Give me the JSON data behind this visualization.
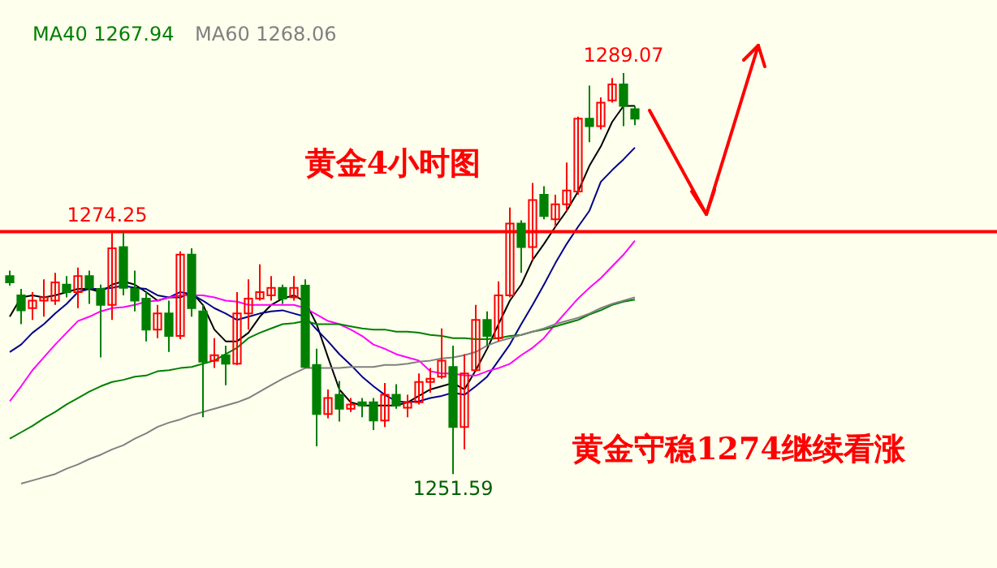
{
  "chart_data": {
    "type": "candlestick",
    "categories": [
      null,
      null,
      null,
      null,
      null,
      null,
      null,
      null,
      null,
      null,
      null,
      null,
      null,
      null,
      null,
      null,
      null,
      null,
      null,
      null,
      null,
      null,
      null,
      null,
      null,
      null,
      null,
      null,
      null,
      null,
      null,
      null,
      null,
      null,
      null,
      null,
      null,
      null,
      null,
      null,
      null,
      null,
      null,
      null,
      null,
      null,
      null,
      null,
      null,
      null,
      null,
      null,
      null,
      null,
      null,
      null
    ],
    "ohlc": [
      [
        1270.1,
        1270.6,
        1269.2,
        1269.5
      ],
      [
        1268.3,
        1268.9,
        1265.6,
        1266.9
      ],
      [
        1267.1,
        1268.6,
        1266.0,
        1267.8
      ],
      [
        1267.8,
        1269.8,
        1266.3,
        1268.1
      ],
      [
        1267.8,
        1270.4,
        1267.4,
        1269.5
      ],
      [
        1269.3,
        1270.1,
        1268.1,
        1268.6
      ],
      [
        1268.6,
        1270.9,
        1267.1,
        1270.1
      ],
      [
        1270.1,
        1270.6,
        1267.5,
        1269.0
      ],
      [
        1268.9,
        1269.3,
        1262.5,
        1267.4
      ],
      [
        1267.4,
        1274.25,
        1266.0,
        1272.7
      ],
      [
        1272.8,
        1274.2,
        1268.3,
        1269.0
      ],
      [
        1268.9,
        1270.6,
        1266.8,
        1267.8
      ],
      [
        1268.0,
        1268.6,
        1264.0,
        1265.1
      ],
      [
        1265.1,
        1267.4,
        1264.3,
        1266.6
      ],
      [
        1266.6,
        1267.8,
        1263.0,
        1264.5
      ],
      [
        1264.5,
        1272.4,
        1264.2,
        1272.1
      ],
      [
        1272.1,
        1272.7,
        1266.3,
        1267.1
      ],
      [
        1266.8,
        1267.4,
        1256.9,
        1262.1
      ],
      [
        1262.2,
        1264.3,
        1261.5,
        1262.7
      ],
      [
        1262.7,
        1263.6,
        1259.9,
        1261.9
      ],
      [
        1261.9,
        1268.6,
        1261.8,
        1266.6
      ],
      [
        1266.6,
        1269.8,
        1265.1,
        1268.0
      ],
      [
        1268.0,
        1271.2,
        1267.8,
        1268.6
      ],
      [
        1268.3,
        1270.1,
        1267.8,
        1269.0
      ],
      [
        1269.0,
        1269.3,
        1267.5,
        1268.0
      ],
      [
        1268.1,
        1270.1,
        1267.8,
        1269.0
      ],
      [
        1269.2,
        1269.8,
        1261.5,
        1261.6
      ],
      [
        1261.8,
        1263.3,
        1254.2,
        1257.2
      ],
      [
        1257.2,
        1259.5,
        1256.8,
        1258.7
      ],
      [
        1259.0,
        1260.3,
        1256.5,
        1257.7
      ],
      [
        1257.7,
        1258.7,
        1257.4,
        1258.1
      ],
      [
        1258.3,
        1258.7,
        1256.9,
        1258.0
      ],
      [
        1258.3,
        1258.7,
        1255.7,
        1256.6
      ],
      [
        1256.6,
        1260.1,
        1256.0,
        1259.0
      ],
      [
        1259.0,
        1260.0,
        1257.7,
        1258.0
      ],
      [
        1257.8,
        1259.0,
        1256.9,
        1258.3
      ],
      [
        1258.3,
        1261.0,
        1258.1,
        1260.2
      ],
      [
        1260.2,
        1261.5,
        1259.2,
        1260.5
      ],
      [
        1260.7,
        1265.2,
        1260.5,
        1262.2
      ],
      [
        1261.6,
        1263.6,
        1251.59,
        1256.0
      ],
      [
        1256.0,
        1262.8,
        1253.9,
        1261.0
      ],
      [
        1261.3,
        1267.4,
        1261.2,
        1266.0
      ],
      [
        1266.0,
        1266.8,
        1263.6,
        1264.5
      ],
      [
        1264.3,
        1269.6,
        1264.0,
        1268.3
      ],
      [
        1268.3,
        1276.5,
        1268.1,
        1275.0
      ],
      [
        1275.0,
        1275.3,
        1270.4,
        1272.8
      ],
      [
        1272.8,
        1278.8,
        1271.6,
        1277.2
      ],
      [
        1277.7,
        1278.5,
        1275.4,
        1275.7
      ],
      [
        1275.4,
        1277.7,
        1274.7,
        1276.8
      ],
      [
        1276.8,
        1280.7,
        1276.2,
        1278.1
      ],
      [
        1278.0,
        1285.0,
        1277.7,
        1284.8
      ],
      [
        1284.8,
        1287.9,
        1282.6,
        1284.1
      ],
      [
        1284.1,
        1286.8,
        1283.8,
        1286.3
      ],
      [
        1286.5,
        1288.6,
        1286.3,
        1288.0
      ],
      [
        1288.0,
        1289.07,
        1284.1,
        1286.0
      ],
      [
        1285.7,
        1286.0,
        1284.2,
        1284.8
      ]
    ],
    "colors": [
      "#008000",
      "#008000",
      "#ff0000",
      "#ff0000",
      "#ff0000",
      "#008000",
      "#ff0000",
      "#008000",
      "#008000",
      "#ff0000",
      "#008000",
      "#008000",
      "#008000",
      "#ff0000",
      "#008000",
      "#ff0000",
      "#008000",
      "#008000",
      "#ff0000",
      "#008000",
      "#ff0000",
      "#ff0000",
      "#ff0000",
      "#ff0000",
      "#008000",
      "#ff0000",
      "#008000",
      "#008000",
      "#ff0000",
      "#008000",
      "#ff0000",
      "#008000",
      "#008000",
      "#ff0000",
      "#008000",
      "#ff0000",
      "#ff0000",
      "#ff0000",
      "#ff0000",
      "#008000",
      "#ff0000",
      "#ff0000",
      "#008000",
      "#ff0000",
      "#ff0000",
      "#008000",
      "#ff0000",
      "#008000",
      "#ff0000",
      "#ff0000",
      "#ff0000",
      "#008000",
      "#ff0000",
      "#ff0000",
      "#008000",
      "#008000"
    ],
    "series": [
      {
        "type": "line",
        "color": "#000000",
        "values": [
          1266.3,
          1268.1,
          1268.3,
          1268.1,
          1268.3,
          1268.6,
          1268.9,
          1268.9,
          1268.6,
          1269.3,
          1269.6,
          1269.3,
          1268.6,
          1267.8,
          1268.1,
          1268.1,
          1268.6,
          1267.4,
          1265.1,
          1264.0,
          1264.0,
          1264.8,
          1266.3,
          1267.4,
          1268.0,
          1268.3,
          1267.7,
          1265.6,
          1262.5,
          1259.5,
          1258.3,
          1258.0,
          1258.0,
          1258.0,
          1258.0,
          1258.3,
          1258.9,
          1259.5,
          1259.8,
          1260.1,
          1259.5,
          1261.3,
          1263.3,
          1265.6,
          1267.8,
          1269.3,
          1271.6,
          1273.1,
          1274.7,
          1276.2,
          1278.0,
          1280.4,
          1282.2,
          1284.5,
          1286.0,
          1286.0
        ]
      },
      {
        "type": "line",
        "color": "#00008b",
        "values": [
          1263.0,
          1263.7,
          1264.8,
          1265.6,
          1266.6,
          1267.5,
          1268.6,
          1268.9,
          1268.9,
          1269.0,
          1269.2,
          1269.0,
          1268.9,
          1268.3,
          1268.1,
          1268.6,
          1268.4,
          1267.8,
          1267.1,
          1266.6,
          1266.0,
          1266.3,
          1266.6,
          1266.8,
          1266.9,
          1266.6,
          1266.3,
          1265.1,
          1264.0,
          1262.8,
          1261.8,
          1260.7,
          1259.8,
          1259.0,
          1258.4,
          1258.3,
          1258.4,
          1258.7,
          1258.9,
          1259.2,
          1259.0,
          1259.8,
          1260.7,
          1262.2,
          1263.7,
          1265.6,
          1267.4,
          1269.3,
          1271.3,
          1273.1,
          1274.7,
          1276.2,
          1278.9,
          1280.0,
          1281.0,
          1282.1
        ]
      },
      {
        "type": "line",
        "color": "#ff00ff",
        "values": [
          1258.4,
          1259.8,
          1261.3,
          1262.5,
          1263.7,
          1264.8,
          1265.9,
          1266.3,
          1266.8,
          1267.1,
          1267.2,
          1267.4,
          1267.7,
          1267.8,
          1268.1,
          1268.3,
          1268.3,
          1268.3,
          1268.1,
          1267.8,
          1267.7,
          1267.4,
          1267.4,
          1267.4,
          1267.4,
          1267.4,
          1267.1,
          1266.5,
          1265.9,
          1265.6,
          1265.1,
          1264.5,
          1263.7,
          1263.3,
          1262.8,
          1262.5,
          1262.2,
          1261.2,
          1261.0,
          1261.0,
          1260.8,
          1260.8,
          1261.2,
          1261.5,
          1261.9,
          1262.7,
          1263.4,
          1264.3,
          1265.6,
          1266.8,
          1268.0,
          1269.0,
          1269.9,
          1271.0,
          1272.1,
          1273.4
        ]
      },
      {
        "type": "line",
        "name": "MA40 1267.94",
        "color": "#008000",
        "values": [
          1254.9,
          1255.5,
          1256.1,
          1256.8,
          1257.4,
          1258.1,
          1258.7,
          1259.3,
          1259.8,
          1260.2,
          1260.4,
          1260.7,
          1260.8,
          1261.2,
          1261.3,
          1261.5,
          1261.6,
          1261.9,
          1262.2,
          1262.8,
          1263.4,
          1264.3,
          1264.8,
          1265.2,
          1265.6,
          1265.7,
          1265.9,
          1265.6,
          1265.6,
          1265.6,
          1265.4,
          1265.2,
          1265.1,
          1265.1,
          1264.9,
          1264.9,
          1264.8,
          1264.6,
          1264.5,
          1264.3,
          1264.3,
          1264.2,
          1264.2,
          1264.3,
          1264.5,
          1264.6,
          1264.9,
          1265.1,
          1265.4,
          1265.7,
          1266.0,
          1266.5,
          1266.9,
          1267.4,
          1267.7,
          1267.9
        ]
      },
      {
        "type": "line",
        "name": "MA60 1268.06",
        "color": "#808080",
        "values": [
          null,
          1250.7,
          1251.0,
          1251.3,
          1251.6,
          1252.1,
          1252.5,
          1253.0,
          1253.4,
          1253.9,
          1254.3,
          1254.9,
          1255.4,
          1256.0,
          1256.4,
          1256.7,
          1257.1,
          1257.4,
          1257.7,
          1258.0,
          1258.3,
          1258.7,
          1259.3,
          1259.9,
          1260.5,
          1261.0,
          1261.5,
          1261.5,
          1261.5,
          1261.5,
          1261.6,
          1261.6,
          1261.6,
          1261.8,
          1261.8,
          1261.9,
          1262.1,
          1262.2,
          1262.4,
          1262.5,
          1262.7,
          1263.0,
          1263.6,
          1264.0,
          1264.3,
          1264.6,
          1264.9,
          1265.2,
          1265.6,
          1265.9,
          1266.2,
          1266.6,
          1267.1,
          1267.5,
          1267.8,
          1268.1
        ]
      }
    ],
    "ref_lines": [
      {
        "axis": "y",
        "value": 1274.25,
        "label": "1274.25",
        "color": "#ff0000"
      }
    ],
    "annotations": [
      {
        "text": "1289.07",
        "y": 1289.07
      },
      {
        "text": "1251.59",
        "y": 1251.59
      },
      "黄金4小时图",
      "黄金守稳1274继续看涨"
    ]
  }
}
